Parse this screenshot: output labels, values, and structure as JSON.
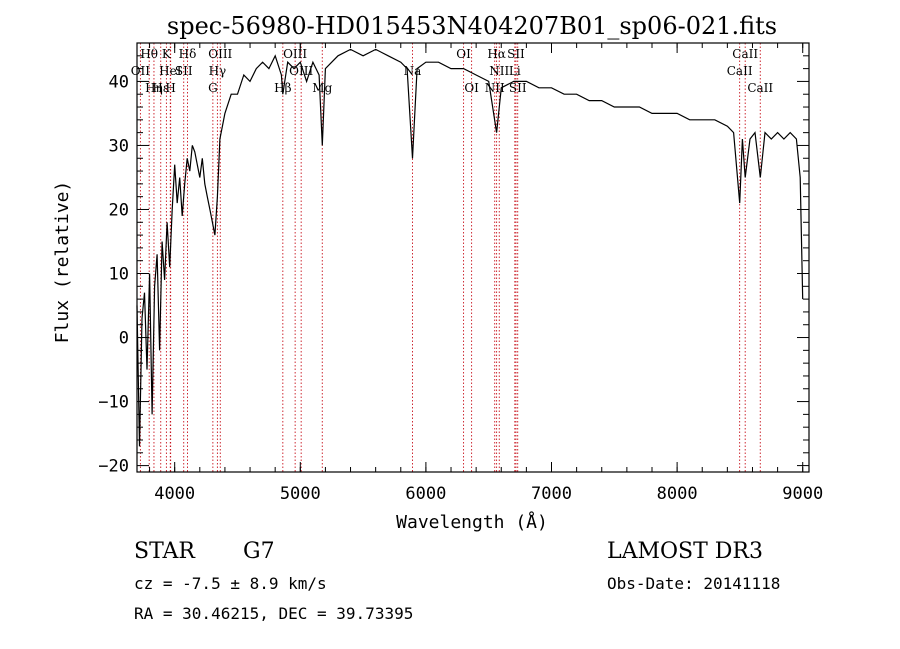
{
  "chart_data": {
    "type": "line",
    "title": "spec-56980-HD015453N404207B01_sp06-021.fits",
    "xlabel": "Wavelength (Å)",
    "ylabel": "Flux (relative)",
    "xlim": [
      3700,
      9050
    ],
    "ylim": [
      -21,
      46
    ],
    "xticks": [
      4000,
      5000,
      6000,
      7000,
      8000,
      9000
    ],
    "yticks": [
      -20,
      -10,
      0,
      10,
      20,
      30,
      40
    ],
    "grid": false,
    "series": [
      {
        "name": "spectrum",
        "x": [
          3700,
          3720,
          3740,
          3760,
          3780,
          3800,
          3820,
          3840,
          3860,
          3880,
          3900,
          3920,
          3940,
          3960,
          3980,
          4000,
          4020,
          4040,
          4060,
          4080,
          4100,
          4120,
          4140,
          4160,
          4180,
          4200,
          4220,
          4240,
          4260,
          4280,
          4300,
          4320,
          4340,
          4360,
          4380,
          4400,
          4450,
          4500,
          4550,
          4600,
          4650,
          4700,
          4750,
          4800,
          4850,
          4861,
          4900,
          4950,
          5000,
          5050,
          5100,
          5150,
          5175,
          5200,
          5250,
          5300,
          5400,
          5500,
          5600,
          5700,
          5800,
          5850,
          5893,
          5930,
          6000,
          6100,
          6200,
          6300,
          6400,
          6500,
          6563,
          6600,
          6700,
          6800,
          6900,
          7000,
          7100,
          7200,
          7300,
          7400,
          7500,
          7600,
          7700,
          7800,
          7900,
          8000,
          8100,
          8200,
          8300,
          8400,
          8450,
          8498,
          8520,
          8542,
          8580,
          8620,
          8662,
          8700,
          8750,
          8800,
          8850,
          8900,
          8950,
          8980,
          9000
        ],
        "y": [
          5,
          -17,
          3,
          7,
          -5,
          10,
          -12,
          8,
          13,
          -2,
          15,
          9,
          18,
          11,
          20,
          27,
          21,
          25,
          19,
          24,
          28,
          26,
          30,
          29,
          27,
          25,
          28,
          24,
          22,
          20,
          18,
          16,
          22,
          31,
          33,
          35,
          38,
          38,
          41,
          40,
          42,
          43,
          42,
          44,
          41,
          38,
          43,
          42,
          43,
          40,
          43,
          41,
          30,
          42,
          43,
          44,
          45,
          44,
          45,
          44,
          43,
          42,
          28,
          42,
          43,
          43,
          42,
          42,
          41,
          40,
          32,
          39,
          40,
          40,
          39,
          39,
          38,
          38,
          37,
          37,
          36,
          36,
          36,
          35,
          35,
          35,
          34,
          34,
          34,
          33,
          32,
          21,
          31,
          25,
          31,
          32,
          25,
          32,
          31,
          32,
          31,
          32,
          31,
          25,
          6
        ]
      }
    ],
    "line_markers": [
      {
        "label": "Hθ",
        "x": 3797,
        "row": 1
      },
      {
        "label": "OII",
        "x": 3727,
        "row": 2
      },
      {
        "label": "Hη",
        "x": 3835,
        "row": 3
      },
      {
        "label": "Hε",
        "x": 3889,
        "row": 3
      },
      {
        "label": "K",
        "x": 3934,
        "row": 1
      },
      {
        "label": "HeI",
        "x": 3965,
        "row": 2
      },
      {
        "label": "H",
        "x": 3968,
        "row": 3
      },
      {
        "label": "SII",
        "x": 4072,
        "row": 2
      },
      {
        "label": "Hδ",
        "x": 4102,
        "row": 1
      },
      {
        "label": "OIII",
        "x": 4363,
        "row": 1
      },
      {
        "label": "Hγ",
        "x": 4340,
        "row": 2
      },
      {
        "label": "G",
        "x": 4304,
        "row": 3
      },
      {
        "label": "Hβ",
        "x": 4861,
        "row": 3
      },
      {
        "label": "OIII",
        "x": 4959,
        "row": 1
      },
      {
        "label": "OIII",
        "x": 5007,
        "row": 2
      },
      {
        "label": "Mg",
        "x": 5175,
        "row": 3
      },
      {
        "label": "Na",
        "x": 5893,
        "row": 2
      },
      {
        "label": "OI",
        "x": 6300,
        "row": 1
      },
      {
        "label": "OI",
        "x": 6364,
        "row": 3
      },
      {
        "label": "Hα",
        "x": 6563,
        "row": 1
      },
      {
        "label": "NII",
        "x": 6548,
        "row": 3
      },
      {
        "label": "SII",
        "x": 6717,
        "row": 1
      },
      {
        "label": "NII",
        "x": 6584,
        "row": 2
      },
      {
        "label": "Li",
        "x": 6708,
        "row": 2
      },
      {
        "label": "SII",
        "x": 6731,
        "row": 3
      },
      {
        "label": "CaII",
        "x": 8498,
        "row": 2
      },
      {
        "label": "CaII",
        "x": 8542,
        "row": 1
      },
      {
        "label": "CaII",
        "x": 8662,
        "row": 3
      }
    ]
  },
  "info": {
    "object_class": "STAR",
    "subclass": "G7",
    "survey": "LAMOST DR3",
    "cz": "cz = -7.5 ± 8.9 km/s",
    "obs_date": "Obs-Date: 20141118",
    "coords": "RA =  30.46215, DEC =  39.73395"
  }
}
